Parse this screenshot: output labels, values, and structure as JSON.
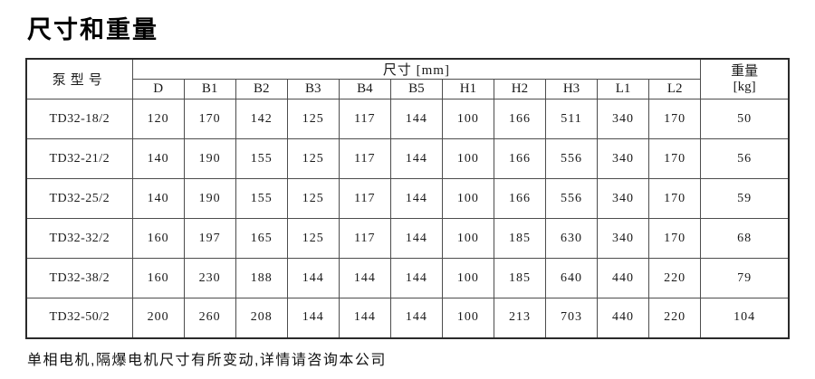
{
  "page": {
    "title": "尺寸和重量",
    "footnote": "单相电机,隔爆电机尺寸有所变动,详情请咨询本公司"
  },
  "table": {
    "corner_header": "泵型号",
    "dims_group_header": "尺寸 [mm]",
    "weight_header_line1": "重量",
    "weight_header_line2": "[kg]",
    "dim_columns": [
      "D",
      "B1",
      "B2",
      "B3",
      "B4",
      "B5",
      "H1",
      "H2",
      "H3",
      "L1",
      "L2"
    ],
    "rows": [
      {
        "model": "TD32-18/2",
        "dims": [
          120,
          170,
          142,
          125,
          117,
          144,
          100,
          166,
          511,
          340,
          170
        ],
        "weight": 50
      },
      {
        "model": "TD32-21/2",
        "dims": [
          140,
          190,
          155,
          125,
          117,
          144,
          100,
          166,
          556,
          340,
          170
        ],
        "weight": 56
      },
      {
        "model": "TD32-25/2",
        "dims": [
          140,
          190,
          155,
          125,
          117,
          144,
          100,
          166,
          556,
          340,
          170
        ],
        "weight": 59
      },
      {
        "model": "TD32-32/2",
        "dims": [
          160,
          197,
          165,
          125,
          117,
          144,
          100,
          185,
          630,
          340,
          170
        ],
        "weight": 68
      },
      {
        "model": "TD32-38/2",
        "dims": [
          160,
          230,
          188,
          144,
          144,
          144,
          100,
          185,
          640,
          440,
          220
        ],
        "weight": 79
      },
      {
        "model": "TD32-50/2",
        "dims": [
          200,
          260,
          208,
          144,
          144,
          144,
          100,
          213,
          703,
          440,
          220
        ],
        "weight": 104
      }
    ]
  },
  "colors": {
    "background": "#ffffff",
    "text": "#1a1a1a",
    "border_outer": "#2a2a2a",
    "border_inner": "#4d4d4d"
  }
}
